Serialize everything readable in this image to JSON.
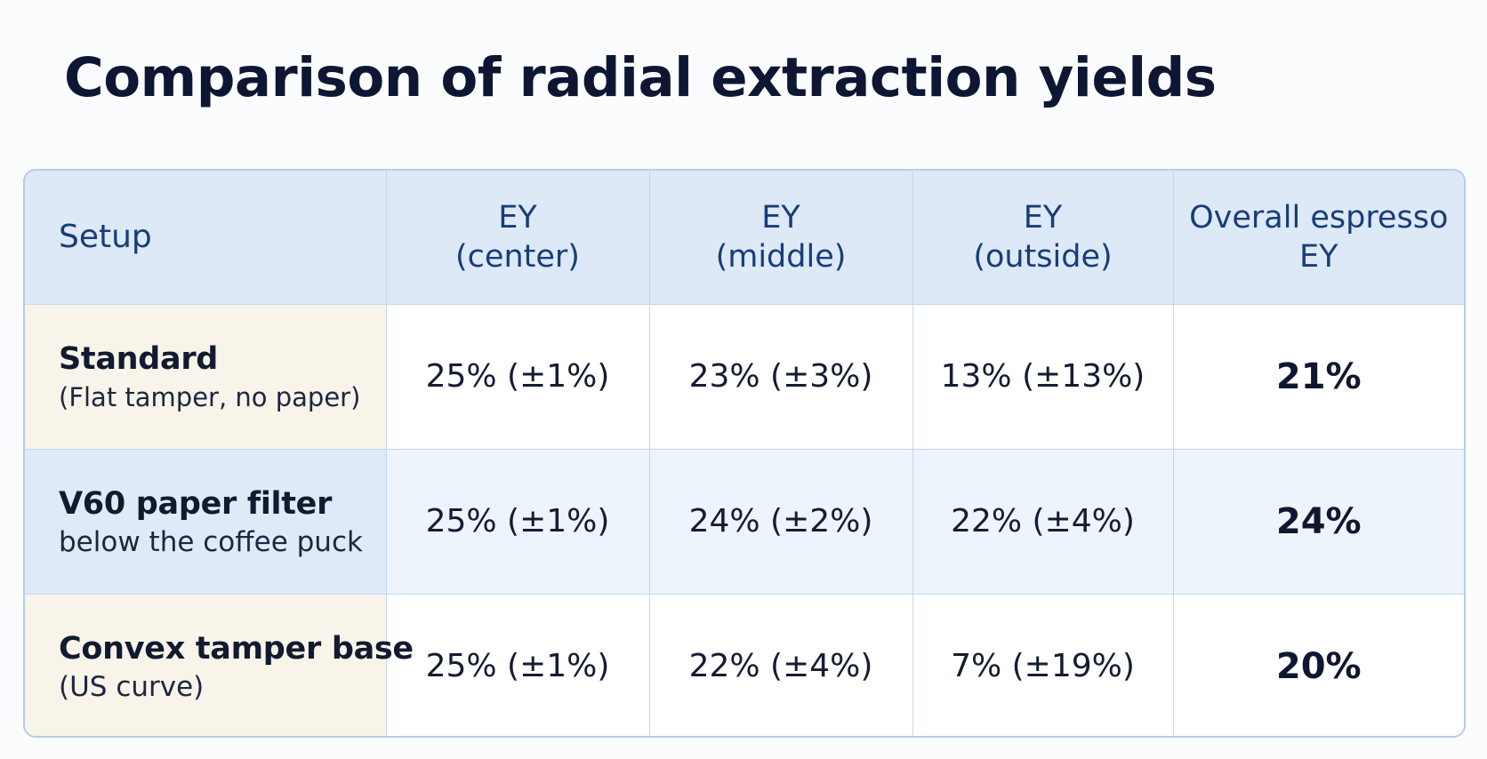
{
  "title": "Comparison of radial extraction yields",
  "table": {
    "headers": {
      "setup": "Setup",
      "center": [
        "EY",
        "(center)"
      ],
      "middle": [
        "EY",
        "(middle)"
      ],
      "outside": [
        "EY",
        "(outside)"
      ],
      "overall": [
        "Overall espresso",
        "EY"
      ]
    },
    "rows": [
      {
        "name": "Standard",
        "description": "(Flat tamper, no paper)",
        "center": "25% (±1%)",
        "middle": "23% (±3%)",
        "outside": "13% (±13%)",
        "overall": "21%"
      },
      {
        "name": "V60 paper filter",
        "description": "below the coffee puck",
        "center": "25% (±1%)",
        "middle": "24% (±2%)",
        "outside": "22% (±4%)",
        "overall": "24%"
      },
      {
        "name": "Convex tamper base",
        "description": "(US curve)",
        "center": "25% (±1%)",
        "middle": "22% (±4%)",
        "outside": "7% (±19%)",
        "overall": "20%"
      }
    ]
  },
  "colors": {
    "title": "#0d1733",
    "header_text": "#173d7a",
    "header_bg": "#dde9f6",
    "setup_cell_bg": "#f8f4ea",
    "highlight_row_bg": "#edf4fc",
    "border": "#c4d7eb"
  }
}
